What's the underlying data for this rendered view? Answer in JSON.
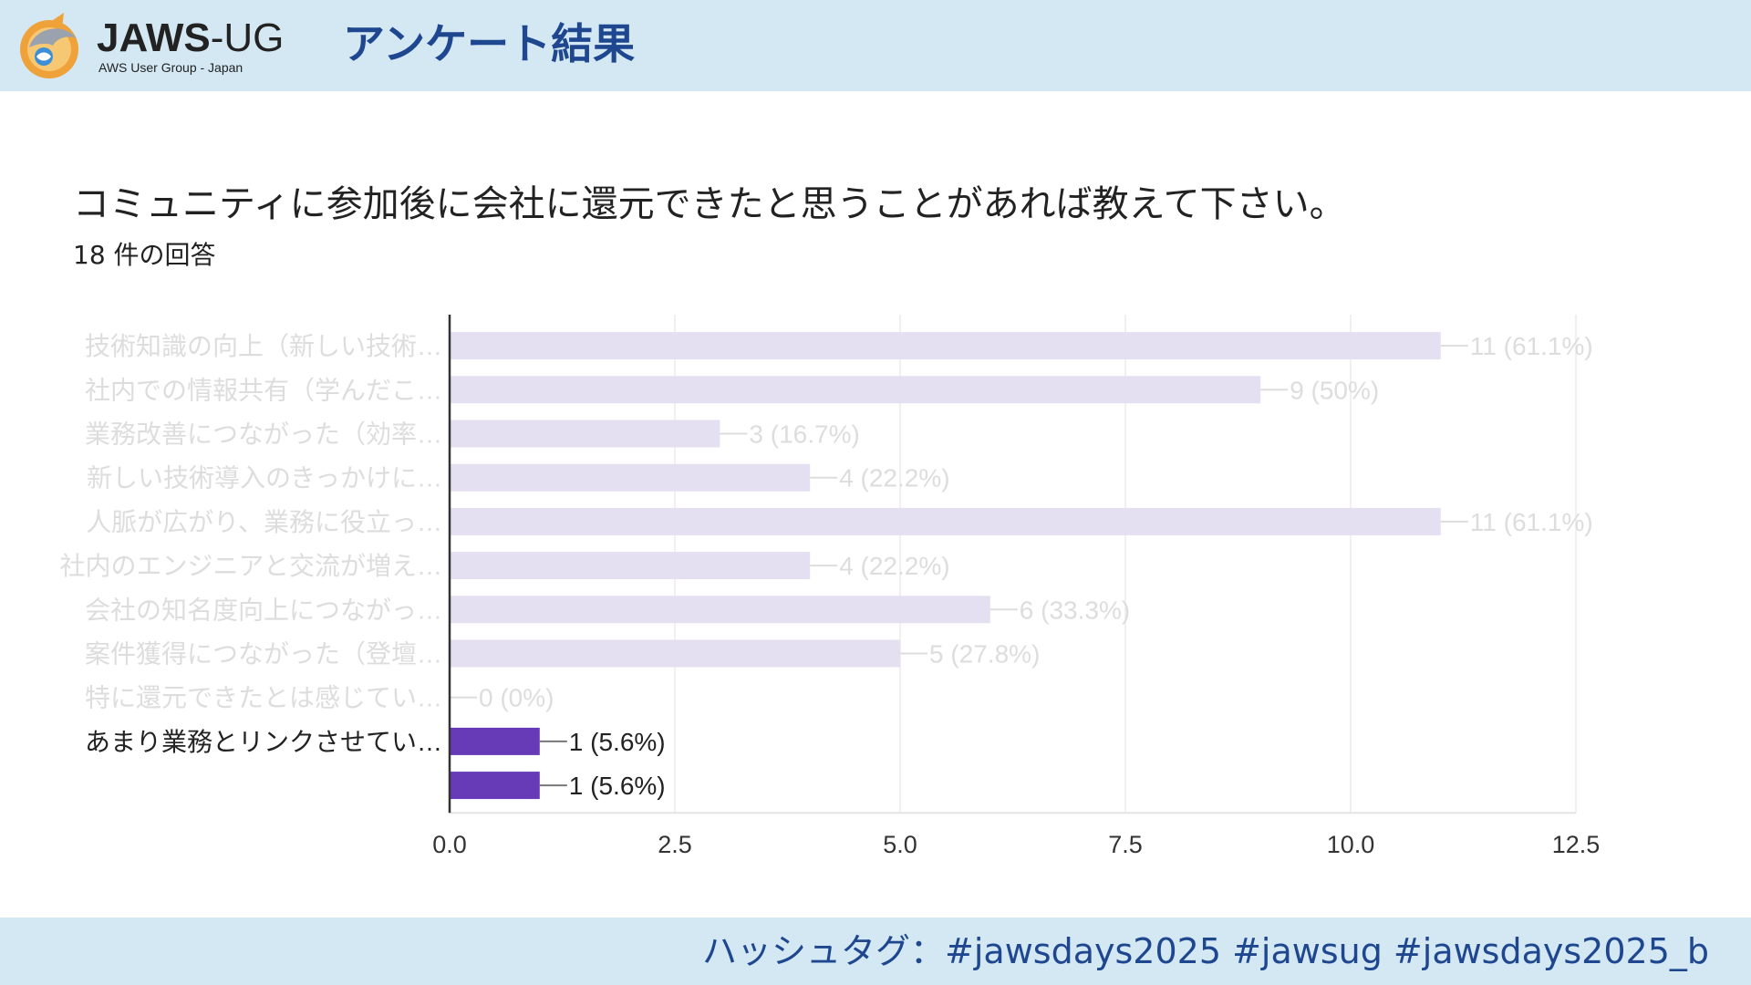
{
  "header": {
    "logo_name": "JAWS",
    "logo_name_suffix": "-UG",
    "logo_sub": "AWS User Group - Japan",
    "title": "アンケート結果"
  },
  "question": {
    "text": "コミュニティに参加後に会社に還元できたと思うことがあれば教えて下さい。",
    "response_count": "18 件の回答"
  },
  "footer": {
    "hashtag": "ハッシュタグ：#jawsdays2025 #jawsug #jawsdays2025_b"
  },
  "colors": {
    "header_bg": "#d3e8f3",
    "title_blue": "#1f4790",
    "bar_faded": "#e5dff2",
    "bar_active": "#673ab7",
    "label_faded": "#dddddd",
    "label_active": "#222222"
  },
  "chart_data": {
    "type": "bar",
    "orientation": "horizontal",
    "xlim": [
      0,
      12.5
    ],
    "ticks": [
      "0.0",
      "2.5",
      "5.0",
      "7.5",
      "10.0",
      "12.5"
    ],
    "tick_values": [
      0,
      2.5,
      5,
      7.5,
      10,
      12.5
    ],
    "grid": true,
    "bars": [
      {
        "category": "技術知識の向上（新しい技術…",
        "value": 11,
        "label": "11 (61.1%)",
        "highlight": false
      },
      {
        "category": "社内での情報共有（学んだこ…",
        "value": 9,
        "label": "9 (50%)",
        "highlight": false
      },
      {
        "category": "業務改善につながった（効率…",
        "value": 3,
        "label": "3 (16.7%)",
        "highlight": false
      },
      {
        "category": "新しい技術導入のきっかけに…",
        "value": 4,
        "label": "4 (22.2%)",
        "highlight": false
      },
      {
        "category": "人脈が広がり、業務に役立っ…",
        "value": 11,
        "label": "11 (61.1%)",
        "highlight": false
      },
      {
        "category": "社内のエンジニアと交流が増え…",
        "value": 4,
        "label": "4 (22.2%)",
        "highlight": false
      },
      {
        "category": "会社の知名度向上につながっ…",
        "value": 6,
        "label": "6 (33.3%)",
        "highlight": false
      },
      {
        "category": "案件獲得につながった（登壇…",
        "value": 5,
        "label": "5 (27.8%)",
        "highlight": false
      },
      {
        "category": "特に還元できたとは感じてい…",
        "value": 0,
        "label": "0 (0%)",
        "highlight": false
      },
      {
        "category": "あまり業務とリンクさせてい…",
        "value": 1,
        "label": "1 (5.6%)",
        "highlight": true
      },
      {
        "category": "",
        "value": 1,
        "label": "1 (5.6%)",
        "highlight": true
      }
    ]
  }
}
